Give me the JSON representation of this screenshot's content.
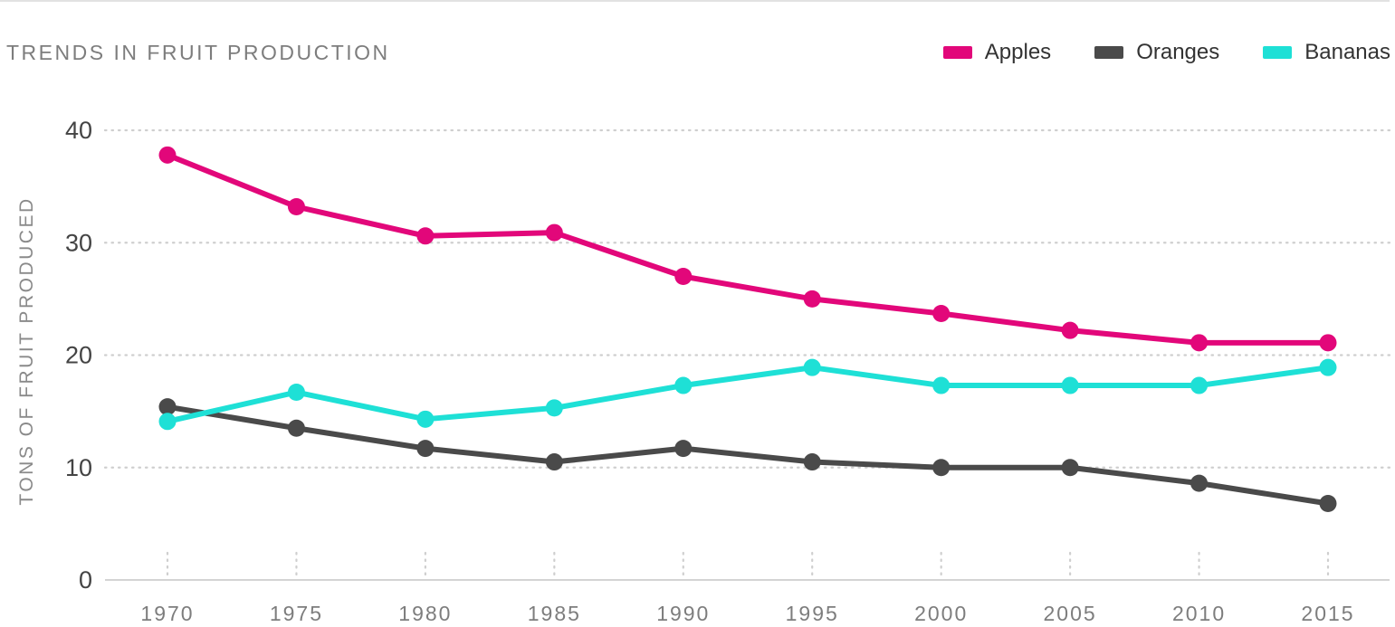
{
  "chart_data": {
    "type": "line",
    "title": "TRENDS IN FRUIT PRODUCTION",
    "xlabel": "",
    "ylabel": "TONS OF FRUIT PRODUCED",
    "x": [
      1970,
      1975,
      1980,
      1985,
      1990,
      1995,
      2000,
      2005,
      2010,
      2015
    ],
    "x_tick_labels": [
      "1970",
      "1975",
      "1980",
      "1985",
      "1990",
      "1995",
      "2000",
      "2005",
      "2010",
      "2015"
    ],
    "ylim": [
      0,
      40
    ],
    "y_ticks": [
      0,
      10,
      20,
      30,
      40
    ],
    "y_tick_labels": [
      "0",
      "10",
      "20",
      "30",
      "40"
    ],
    "grid": "horizontal-dotted",
    "legend_position": "top-right",
    "series": [
      {
        "name": "Apples",
        "color": "#e2077a",
        "values": [
          37.8,
          33.2,
          30.6,
          30.9,
          27.0,
          25.0,
          23.7,
          22.2,
          21.1,
          21.1
        ]
      },
      {
        "name": "Oranges",
        "color": "#4a4a4a",
        "values": [
          15.4,
          13.5,
          11.7,
          10.5,
          11.7,
          10.5,
          10.0,
          10.0,
          8.6,
          6.8
        ]
      },
      {
        "name": "Bananas",
        "color": "#1ee0d6",
        "values": [
          14.1,
          16.7,
          14.3,
          15.3,
          17.3,
          18.9,
          17.3,
          17.3,
          17.3,
          18.9
        ]
      }
    ]
  }
}
